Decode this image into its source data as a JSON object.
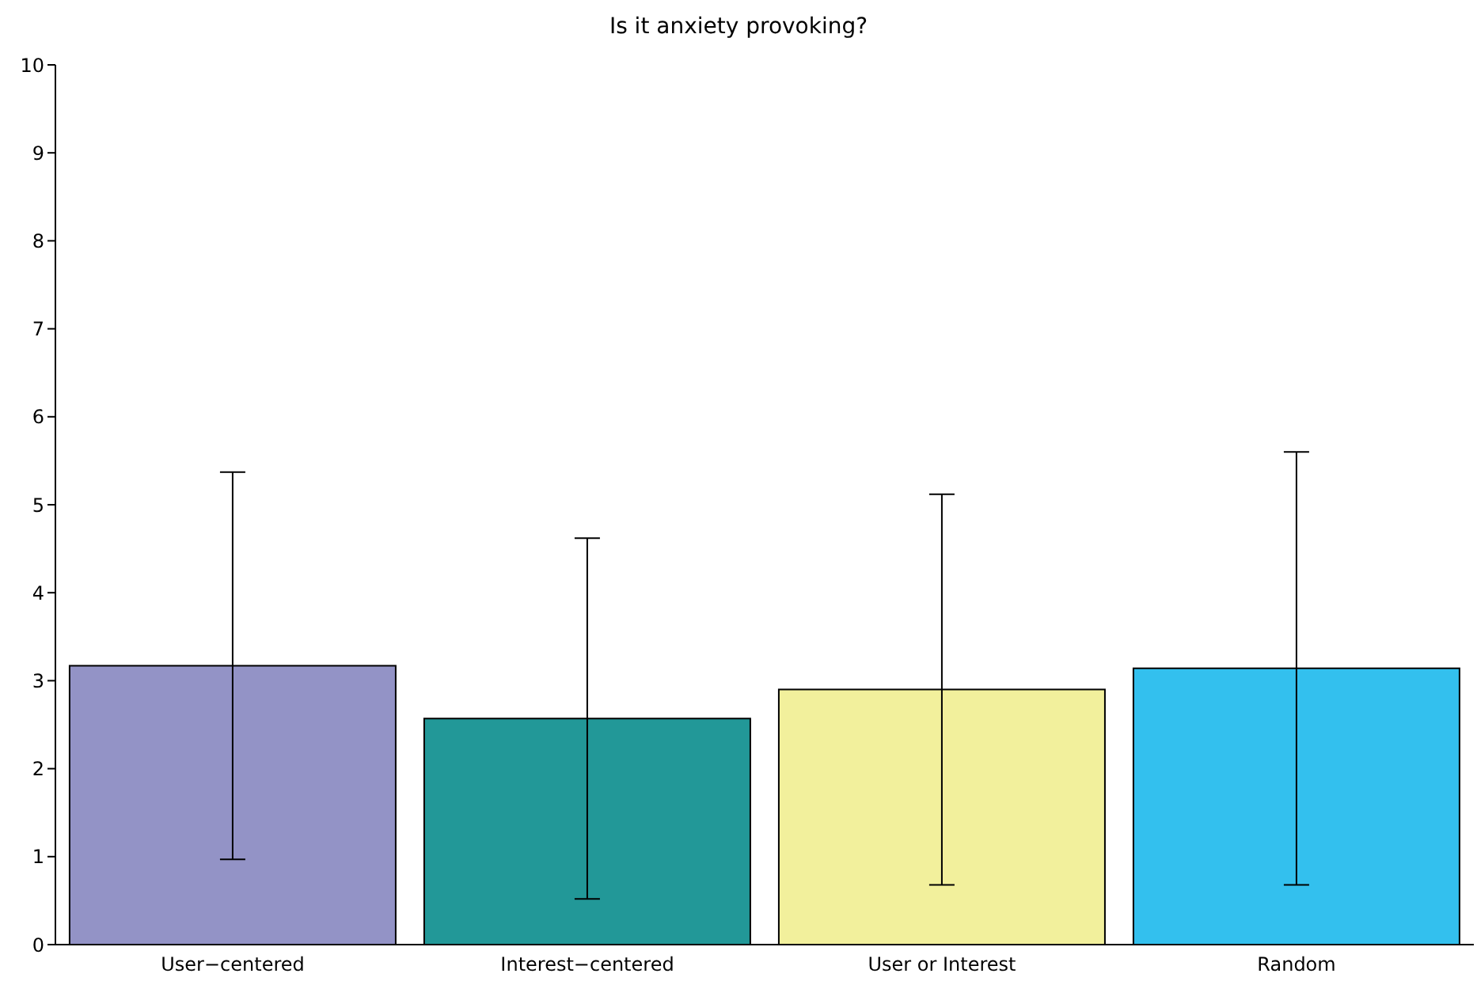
{
  "chart_data": {
    "type": "bar",
    "title": "Is it anxiety provoking?",
    "categories": [
      "User−centered",
      "Interest−centered",
      "User or Interest",
      "Random"
    ],
    "values": [
      3.17,
      2.57,
      2.9,
      3.14
    ],
    "errors": [
      2.2,
      2.05,
      2.22,
      2.46
    ],
    "colors": [
      "#9393c6",
      "#229898",
      "#f2f09c",
      "#33c0ee"
    ],
    "ylim": [
      0,
      10
    ],
    "yticks": [
      0,
      1,
      2,
      3,
      4,
      5,
      6,
      7,
      8,
      9,
      10
    ],
    "grid": false
  }
}
